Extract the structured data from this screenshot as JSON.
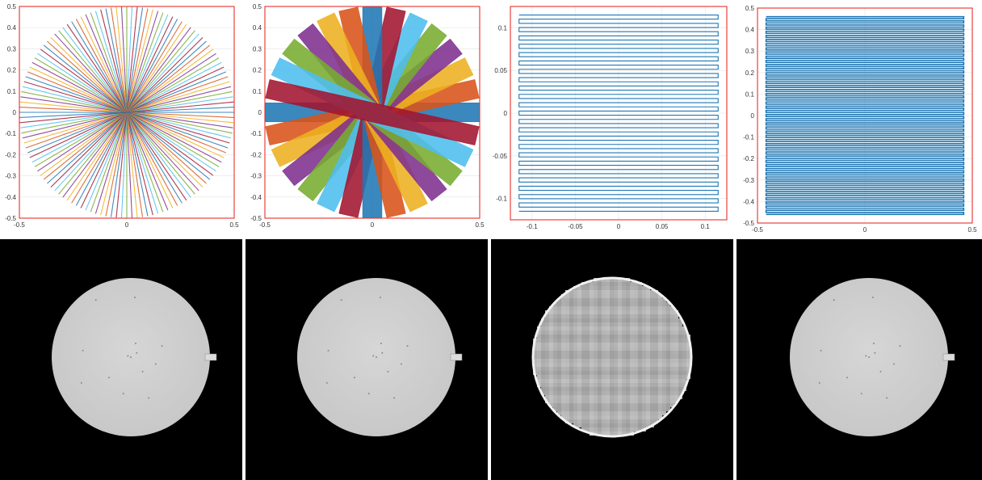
{
  "chart_data": [
    {
      "type": "line",
      "pattern": "radial",
      "spokes": 64,
      "xlim": [
        -0.5,
        0.5
      ],
      "ylim": [
        -0.5,
        0.5
      ],
      "xticks": [
        "-0.5",
        "0",
        "0.5"
      ],
      "yticks": [
        "0.5",
        "0.4",
        "0.3",
        "0.2",
        "0.1",
        "0",
        "-0.1",
        "-0.2",
        "-0.3",
        "-0.4",
        "-0.5"
      ],
      "grid": true,
      "boundary_box": [
        -0.5,
        0.5,
        -0.5,
        0.5
      ],
      "colors": [
        "#1f77b4",
        "#d95319",
        "#edb120",
        "#7e2f8e",
        "#77ac30",
        "#4dbeee",
        "#a2142f"
      ]
    },
    {
      "type": "line",
      "pattern": "blades",
      "blades": 14,
      "xlim": [
        -0.5,
        0.5
      ],
      "ylim": [
        -0.5,
        0.5
      ],
      "xticks": [
        "-0.5",
        "0",
        "0.5"
      ],
      "yticks": [
        "0.5",
        "0.4",
        "0.3",
        "0.2",
        "0.1",
        "0",
        "-0.1",
        "-0.2",
        "-0.3",
        "-0.4",
        "-0.5"
      ],
      "grid": true,
      "boundary_box": [
        -0.5,
        0.5,
        -0.5,
        0.5
      ],
      "colors": [
        "#1f77b4",
        "#d95319",
        "#edb120",
        "#7e2f8e",
        "#77ac30",
        "#4dbeee",
        "#a2142f"
      ]
    },
    {
      "type": "line",
      "pattern": "cartesian",
      "lines": 48,
      "xlim": [
        -0.125,
        0.125
      ],
      "ylim": [
        -0.125,
        0.125
      ],
      "xticks": [
        "-0.1",
        "-0.05",
        "0",
        "0.05",
        "0.1"
      ],
      "yticks": [
        "0.1",
        "0.05",
        "0",
        "-0.05",
        "-0.1"
      ],
      "grid": true,
      "boundary_box": [
        -0.125,
        0.125,
        -0.125,
        0.125
      ],
      "colors": [
        "#1f77b4"
      ]
    },
    {
      "type": "line",
      "pattern": "cartesian",
      "lines": 96,
      "xlim": [
        -0.5,
        0.5
      ],
      "ylim": [
        -0.5,
        0.5
      ],
      "xticks": [
        "-0.5",
        "0",
        "0.5"
      ],
      "yticks": [
        "0.5",
        "0.4",
        "0.3",
        "0.2",
        "0.1",
        "0",
        "-0.1",
        "-0.2",
        "-0.3",
        "-0.4",
        "-0.5"
      ],
      "grid": true,
      "boundary_box": [
        -0.5,
        0.5,
        -0.5,
        0.5
      ],
      "colors": [
        "#1f77b4"
      ]
    }
  ],
  "reconstructions": [
    {
      "gray": "#c8c8c8",
      "pixelated": false,
      "artifact": true
    },
    {
      "gray": "#c8c8c8",
      "pixelated": false,
      "artifact": true
    },
    {
      "gray": "#bdbdbd",
      "pixelated": true,
      "artifact": false
    },
    {
      "gray": "#c8c8c8",
      "pixelated": false,
      "artifact": true
    }
  ]
}
